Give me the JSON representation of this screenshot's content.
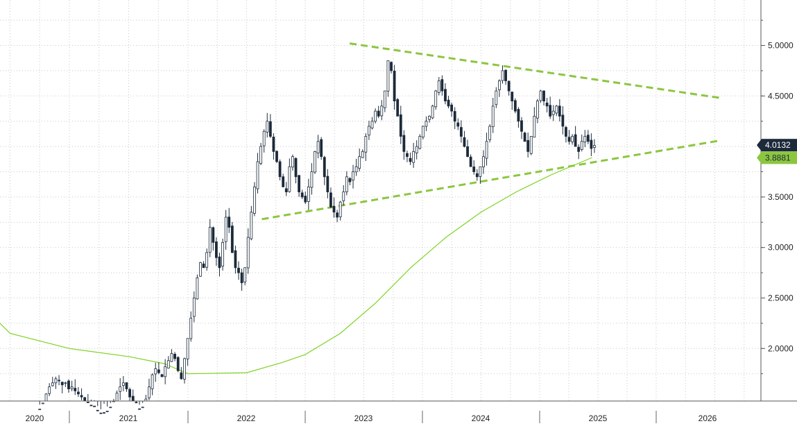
{
  "chart_data": {
    "type": "candlestick",
    "x_axis": {
      "labels": [
        "2020",
        "2021",
        "2022",
        "2023",
        "2024",
        "2025",
        "2026"
      ]
    },
    "y_axis": {
      "side": "right",
      "ticks": [
        "2.0000",
        "2.5000",
        "3.0000",
        "3.5000",
        "4.0000",
        "4.5000",
        "5.0000"
      ],
      "tick_values": [
        2.0,
        2.5,
        3.0,
        3.5,
        4.0,
        4.5,
        5.0
      ],
      "ylim": [
        1.48,
        5.45
      ]
    },
    "grid": true,
    "last_price": {
      "value": 4.0132,
      "label": "4.0132"
    },
    "moving_average_last": {
      "value": 3.8881,
      "label": "3.8881"
    },
    "closes_weekly": [
      1.4,
      1.46,
      1.55,
      1.62,
      1.66,
      1.7,
      1.68,
      1.64,
      1.66,
      1.6,
      1.62,
      1.58,
      1.55,
      1.52,
      1.48,
      1.45,
      1.42,
      1.4,
      1.38,
      1.36,
      1.35,
      1.38,
      1.42,
      1.48,
      1.56,
      1.62,
      1.66,
      1.6,
      1.52,
      1.45,
      1.4,
      1.38,
      1.42,
      1.5,
      1.62,
      1.74,
      1.8,
      1.76,
      1.72,
      1.82,
      1.88,
      1.95,
      1.9,
      1.78,
      1.7,
      1.9,
      2.1,
      2.3,
      2.5,
      2.7,
      2.85,
      2.8,
      2.95,
      3.2,
      3.05,
      2.9,
      2.8,
      3.05,
      3.3,
      3.2,
      2.95,
      2.8,
      2.75,
      2.65,
      2.8,
      3.1,
      3.35,
      3.6,
      3.85,
      4.0,
      4.15,
      4.25,
      4.1,
      3.95,
      3.85,
      3.7,
      3.6,
      3.55,
      3.8,
      3.9,
      3.7,
      3.55,
      3.5,
      3.45,
      3.6,
      3.75,
      3.95,
      4.05,
      3.9,
      3.7,
      3.55,
      3.4,
      3.35,
      3.3,
      3.45,
      3.55,
      3.7,
      3.65,
      3.75,
      3.8,
      3.9,
      3.95,
      4.1,
      4.2,
      4.25,
      4.35,
      4.3,
      4.4,
      4.55,
      4.85,
      4.75,
      4.45,
      4.3,
      4.1,
      3.95,
      3.9,
      3.85,
      3.95,
      4.0,
      4.1,
      4.2,
      4.25,
      4.3,
      4.4,
      4.55,
      4.65,
      4.55,
      4.45,
      4.4,
      4.35,
      4.25,
      4.2,
      4.1,
      4.0,
      3.9,
      3.8,
      3.75,
      3.7,
      3.8,
      3.9,
      4.05,
      4.2,
      4.4,
      4.55,
      4.65,
      4.75,
      4.65,
      4.55,
      4.45,
      4.35,
      4.25,
      4.15,
      4.05,
      3.95,
      4.1,
      4.3,
      4.45,
      4.55,
      4.45,
      4.4,
      4.3,
      4.35,
      4.4,
      4.3,
      4.2,
      4.1,
      4.05,
      4.1,
      4.0,
      3.95,
      4.05,
      4.1,
      4.05,
      3.98,
      4.01
    ],
    "moving_average": [
      [
        0,
        2.25
      ],
      [
        2020.5,
        2.15
      ],
      [
        2021,
        2.0
      ],
      [
        2021.5,
        1.92
      ],
      [
        2021.8,
        1.85
      ],
      [
        2022,
        1.75
      ],
      [
        2022.5,
        1.76
      ],
      [
        2022.8,
        1.86
      ],
      [
        2023,
        1.94
      ],
      [
        2023.3,
        2.15
      ],
      [
        2023.6,
        2.45
      ],
      [
        2023.9,
        2.8
      ],
      [
        2024.2,
        3.1
      ],
      [
        2024.5,
        3.35
      ],
      [
        2024.8,
        3.55
      ],
      [
        2025.1,
        3.72
      ],
      [
        2025.45,
        3.89
      ]
    ],
    "trendlines": [
      {
        "name": "",
        "from": [
          2023.38,
          5.02
        ],
        "to": [
          2026.55,
          4.48
        ]
      },
      {
        "name": "",
        "from": [
          2022.63,
          3.28
        ],
        "to": [
          2026.55,
          4.06
        ]
      }
    ]
  },
  "colors": {
    "candle": "#1c2a3a",
    "moving_average": "#7ed321",
    "trendline": "#8cc63f",
    "grid": "#c8c8c8",
    "badge_dark": "#1c2a3a",
    "badge_green": "#8cc63f"
  }
}
